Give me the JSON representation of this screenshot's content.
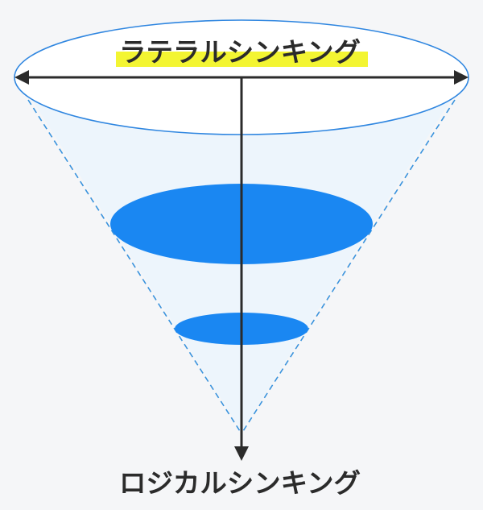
{
  "diagram": {
    "top_label": "ラテラルシンキング",
    "bottom_label": "ロジカルシンキング"
  },
  "colors": {
    "background": "#f5f6f8",
    "cone_fill": "#edf5fc",
    "dashed_edge": "#3a93dd",
    "top_ellipse_stroke": "#2f86e0",
    "disk_fill": "#1a87f2",
    "arrow": "#2b2b2b",
    "highlight": "#f3f532",
    "text": "#2b2b2b"
  }
}
